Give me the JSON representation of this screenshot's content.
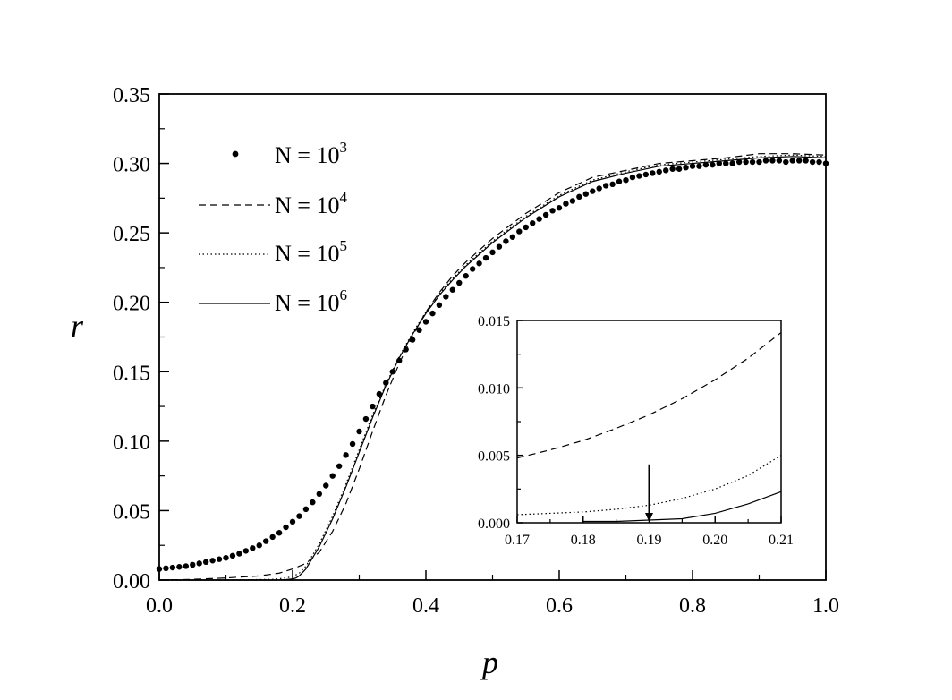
{
  "chart_data": [
    {
      "type": "line",
      "xlabel": "p",
      "ylabel": "r",
      "xlim": [
        0.0,
        1.0
      ],
      "ylim": [
        0.0,
        0.35
      ],
      "xticks": [
        "0.0",
        "0.2",
        "0.4",
        "0.6",
        "0.8",
        "1.0"
      ],
      "yticks": [
        "0.00",
        "0.05",
        "0.10",
        "0.15",
        "0.20",
        "0.25",
        "0.30",
        "0.35"
      ],
      "grid": false,
      "legend_position": "upper-left",
      "legend": [
        {
          "prefix": "N = 10",
          "exponent": "3",
          "marker": "dots"
        },
        {
          "prefix": "N = 10",
          "exponent": "4",
          "marker": "dashed"
        },
        {
          "prefix": "N = 10",
          "exponent": "5",
          "marker": "dotted"
        },
        {
          "prefix": "N = 10",
          "exponent": "6",
          "marker": "solid"
        }
      ],
      "series": [
        {
          "name": "N = 10^3",
          "style": "dots",
          "x": [
            0.0,
            0.01,
            0.02,
            0.03,
            0.04,
            0.05,
            0.06,
            0.07,
            0.08,
            0.09,
            0.1,
            0.11,
            0.12,
            0.13,
            0.14,
            0.15,
            0.16,
            0.17,
            0.18,
            0.19,
            0.2,
            0.21,
            0.22,
            0.23,
            0.24,
            0.25,
            0.26,
            0.27,
            0.28,
            0.29,
            0.3,
            0.31,
            0.32,
            0.33,
            0.34,
            0.35,
            0.36,
            0.37,
            0.38,
            0.39,
            0.4,
            0.41,
            0.42,
            0.43,
            0.44,
            0.45,
            0.46,
            0.47,
            0.48,
            0.49,
            0.5,
            0.51,
            0.52,
            0.53,
            0.54,
            0.55,
            0.56,
            0.57,
            0.58,
            0.59,
            0.6,
            0.61,
            0.62,
            0.63,
            0.64,
            0.65,
            0.66,
            0.67,
            0.68,
            0.69,
            0.7,
            0.71,
            0.72,
            0.73,
            0.74,
            0.75,
            0.76,
            0.77,
            0.78,
            0.79,
            0.8,
            0.81,
            0.82,
            0.83,
            0.84,
            0.85,
            0.86,
            0.87,
            0.88,
            0.89,
            0.9,
            0.91,
            0.92,
            0.93,
            0.94,
            0.95,
            0.96,
            0.97,
            0.98,
            0.99,
            1.0
          ],
          "y": [
            0.008,
            0.0085,
            0.009,
            0.0095,
            0.01,
            0.011,
            0.012,
            0.013,
            0.014,
            0.015,
            0.016,
            0.0175,
            0.019,
            0.021,
            0.023,
            0.025,
            0.028,
            0.031,
            0.034,
            0.038,
            0.042,
            0.046,
            0.051,
            0.056,
            0.062,
            0.068,
            0.075,
            0.082,
            0.09,
            0.098,
            0.107,
            0.116,
            0.125,
            0.134,
            0.142,
            0.15,
            0.158,
            0.166,
            0.173,
            0.18,
            0.186,
            0.192,
            0.198,
            0.204,
            0.209,
            0.214,
            0.219,
            0.224,
            0.228,
            0.232,
            0.236,
            0.24,
            0.244,
            0.247,
            0.251,
            0.254,
            0.257,
            0.26,
            0.263,
            0.266,
            0.268,
            0.271,
            0.273,
            0.276,
            0.278,
            0.28,
            0.282,
            0.284,
            0.285,
            0.287,
            0.288,
            0.29,
            0.291,
            0.292,
            0.293,
            0.294,
            0.295,
            0.296,
            0.296,
            0.297,
            0.298,
            0.298,
            0.299,
            0.299,
            0.3,
            0.3,
            0.3,
            0.301,
            0.301,
            0.301,
            0.301,
            0.302,
            0.302,
            0.302,
            0.301,
            0.302,
            0.302,
            0.302,
            0.301,
            0.301,
            0.3
          ]
        },
        {
          "name": "N = 10^4",
          "style": "dashed",
          "x": [
            0.0,
            0.05,
            0.1,
            0.15,
            0.18,
            0.2,
            0.22,
            0.24,
            0.26,
            0.28,
            0.3,
            0.32,
            0.34,
            0.36,
            0.38,
            0.4,
            0.42,
            0.44,
            0.46,
            0.5,
            0.55,
            0.6,
            0.65,
            0.7,
            0.75,
            0.8,
            0.85,
            0.9,
            0.95,
            1.0
          ],
          "y": [
            0.0,
            0.0005,
            0.0015,
            0.003,
            0.005,
            0.008,
            0.012,
            0.02,
            0.035,
            0.055,
            0.08,
            0.107,
            0.133,
            0.156,
            0.176,
            0.193,
            0.207,
            0.219,
            0.229,
            0.246,
            0.264,
            0.279,
            0.29,
            0.295,
            0.3,
            0.302,
            0.304,
            0.307,
            0.307,
            0.306
          ]
        },
        {
          "name": "N = 10^5",
          "style": "dotted",
          "x": [
            0.0,
            0.1,
            0.17,
            0.19,
            0.2,
            0.21,
            0.22,
            0.24,
            0.26,
            0.28,
            0.3,
            0.32,
            0.34,
            0.36,
            0.38,
            0.4,
            0.42,
            0.44,
            0.46,
            0.5,
            0.55,
            0.6,
            0.65,
            0.7,
            0.75,
            0.8,
            0.85,
            0.9,
            0.95,
            1.0
          ],
          "y": [
            0.0,
            0.0,
            0.0005,
            0.0015,
            0.0025,
            0.005,
            0.01,
            0.026,
            0.046,
            0.069,
            0.094,
            0.119,
            0.141,
            0.161,
            0.178,
            0.193,
            0.206,
            0.217,
            0.227,
            0.244,
            0.262,
            0.277,
            0.288,
            0.294,
            0.299,
            0.301,
            0.303,
            0.305,
            0.306,
            0.305
          ]
        },
        {
          "name": "N = 10^6",
          "style": "solid",
          "x": [
            0.0,
            0.15,
            0.18,
            0.19,
            0.2,
            0.205,
            0.21,
            0.22,
            0.24,
            0.26,
            0.28,
            0.3,
            0.32,
            0.34,
            0.36,
            0.38,
            0.4,
            0.42,
            0.44,
            0.46,
            0.5,
            0.55,
            0.6,
            0.65,
            0.7,
            0.75,
            0.8,
            0.85,
            0.9,
            0.95,
            1.0
          ],
          "y": [
            0.0,
            0.0,
            0.0001,
            0.0003,
            0.0008,
            0.0015,
            0.003,
            0.008,
            0.024,
            0.044,
            0.067,
            0.092,
            0.117,
            0.14,
            0.16,
            0.177,
            0.192,
            0.205,
            0.216,
            0.226,
            0.243,
            0.261,
            0.276,
            0.287,
            0.293,
            0.298,
            0.3,
            0.302,
            0.304,
            0.305,
            0.304
          ]
        }
      ]
    },
    {
      "type": "line",
      "panel": "inset",
      "xlim": [
        0.17,
        0.21
      ],
      "ylim": [
        0.0,
        0.015
      ],
      "xticks": [
        "0.17",
        "0.18",
        "0.19",
        "0.20",
        "0.21"
      ],
      "yticks": [
        "0.000",
        "0.005",
        "0.010",
        "0.015"
      ],
      "grid": false,
      "annotation": {
        "type": "arrow",
        "x": 0.19,
        "y_from": 0.003,
        "y_to": 0.0
      },
      "series": [
        {
          "name": "N = 10^4",
          "style": "dashed",
          "x": [
            0.17,
            0.175,
            0.18,
            0.185,
            0.19,
            0.195,
            0.2,
            0.205,
            0.21
          ],
          "y": [
            0.0048,
            0.0054,
            0.0061,
            0.007,
            0.008,
            0.0092,
            0.0106,
            0.0122,
            0.0141
          ]
        },
        {
          "name": "N = 10^5",
          "style": "dotted",
          "x": [
            0.17,
            0.175,
            0.18,
            0.185,
            0.19,
            0.195,
            0.2,
            0.205,
            0.21
          ],
          "y": [
            0.0006,
            0.0007,
            0.0008,
            0.001,
            0.0013,
            0.0018,
            0.0025,
            0.0035,
            0.005
          ]
        },
        {
          "name": "N = 10^6",
          "style": "solid",
          "x": [
            0.18,
            0.185,
            0.19,
            0.195,
            0.2,
            0.205,
            0.21
          ],
          "y": [
            0.0001,
            0.0001,
            0.0002,
            0.0003,
            0.0007,
            0.0014,
            0.0023
          ]
        }
      ]
    }
  ]
}
